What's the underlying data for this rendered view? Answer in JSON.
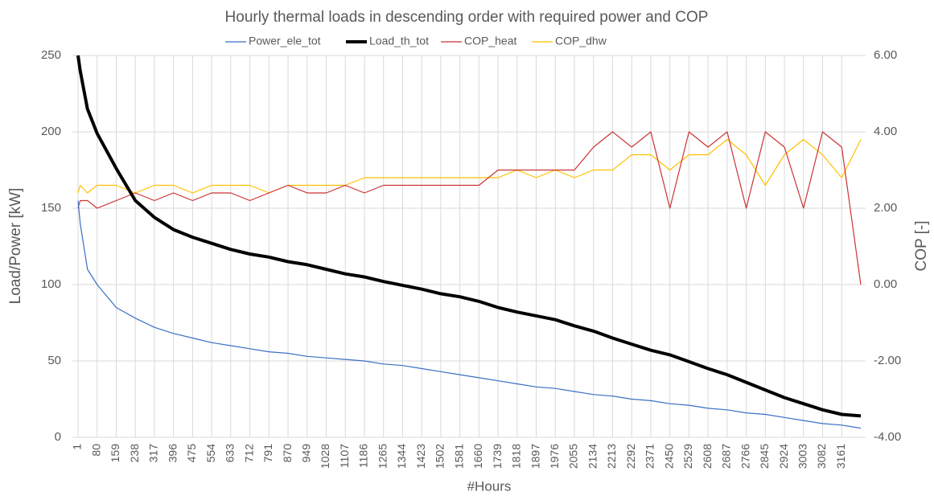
{
  "chart_data": {
    "type": "line",
    "title": "Hourly thermal loads in descending order with required power and COP",
    "x_label": "#Hours",
    "y_label": "Load/Power [kW]",
    "y2_label": "COP [-]",
    "x": [
      1,
      10,
      40,
      80,
      159,
      238,
      317,
      396,
      475,
      554,
      633,
      712,
      791,
      870,
      949,
      1028,
      1107,
      1186,
      1265,
      1344,
      1423,
      1502,
      1581,
      1660,
      1739,
      1818,
      1897,
      1976,
      2055,
      2134,
      2213,
      2292,
      2371,
      2450,
      2529,
      2608,
      2687,
      2766,
      2845,
      2924,
      3003,
      3082,
      3161,
      3240
    ],
    "xlim": [
      1,
      3240
    ],
    "xticks": [
      1,
      80,
      159,
      238,
      317,
      396,
      475,
      554,
      633,
      712,
      791,
      870,
      949,
      1028,
      1107,
      1186,
      1265,
      1344,
      1423,
      1502,
      1581,
      1660,
      1739,
      1818,
      1897,
      1976,
      2055,
      2134,
      2213,
      2292,
      2371,
      2450,
      2529,
      2608,
      2687,
      2766,
      2845,
      2924,
      3003,
      3082,
      3161
    ],
    "ylim": [
      0,
      250
    ],
    "yticks": [
      0,
      50,
      100,
      150,
      200,
      250
    ],
    "y2lim": [
      -4,
      6
    ],
    "y2ticks": [
      {
        "value": -4,
        "label": "-4.00"
      },
      {
        "value": -2,
        "label": "-2.00"
      },
      {
        "value": 0,
        "label": "0.00"
      },
      {
        "value": 2,
        "label": "2.00"
      },
      {
        "value": 4,
        "label": "4.00"
      },
      {
        "value": 6,
        "label": "6.00"
      }
    ],
    "grid": true,
    "legend": "top",
    "series": [
      {
        "name": "Power_ele_tot",
        "color": "#3a6fc4",
        "width": 1.2,
        "values": [
          155,
          140,
          110,
          100,
          85,
          78,
          72,
          68,
          65,
          62,
          60,
          58,
          56,
          55,
          53,
          52,
          51,
          50,
          48,
          47,
          45,
          43,
          41,
          39,
          37,
          35,
          33,
          32,
          30,
          28,
          27,
          25,
          24,
          22,
          21,
          19,
          18,
          16,
          15,
          13,
          11,
          9,
          8,
          6
        ]
      },
      {
        "name": "Load_th_tot",
        "color": "#000000",
        "width": 4,
        "values": [
          250,
          240,
          215,
          199,
          176,
          155,
          144,
          136,
          131,
          127,
          123,
          120,
          118,
          115,
          113,
          110,
          107,
          105,
          102,
          99.5,
          97,
          94,
          92,
          89,
          85,
          82,
          79.5,
          77,
          73,
          69.5,
          65,
          61,
          57,
          54,
          49.5,
          45,
          41,
          36,
          31,
          26,
          22,
          18,
          15,
          14
        ]
      },
      {
        "name": "COP_heat",
        "color": "#cc3333",
        "width": 1.2,
        "axis": "y2",
        "values": [
          2.0,
          2.2,
          2.2,
          2.0,
          2.2,
          2.4,
          2.2,
          2.4,
          2.2,
          2.4,
          2.4,
          2.2,
          2.4,
          2.6,
          2.4,
          2.4,
          2.6,
          2.4,
          2.6,
          2.6,
          2.6,
          2.6,
          2.6,
          2.6,
          3.0,
          3.0,
          3.0,
          3.0,
          3.0,
          3.6,
          4.0,
          3.6,
          4.0,
          2.0,
          4.0,
          3.6,
          4.0,
          2.0,
          4.0,
          3.6,
          2.0,
          4.0,
          3.6,
          0
        ]
      },
      {
        "name": "COP_dhw",
        "color": "#ffc000",
        "width": 1.2,
        "axis": "y2",
        "values": [
          2.4,
          2.6,
          2.4,
          2.6,
          2.6,
          2.4,
          2.6,
          2.6,
          2.4,
          2.6,
          2.6,
          2.6,
          2.4,
          2.6,
          2.6,
          2.6,
          2.6,
          2.8,
          2.8,
          2.8,
          2.8,
          2.8,
          2.8,
          2.8,
          2.8,
          3.0,
          2.8,
          3.0,
          2.8,
          3.0,
          3.0,
          3.4,
          3.4,
          3.0,
          3.4,
          3.4,
          3.8,
          3.4,
          2.6,
          3.4,
          3.8,
          3.4,
          2.8,
          3.8
        ]
      }
    ]
  }
}
